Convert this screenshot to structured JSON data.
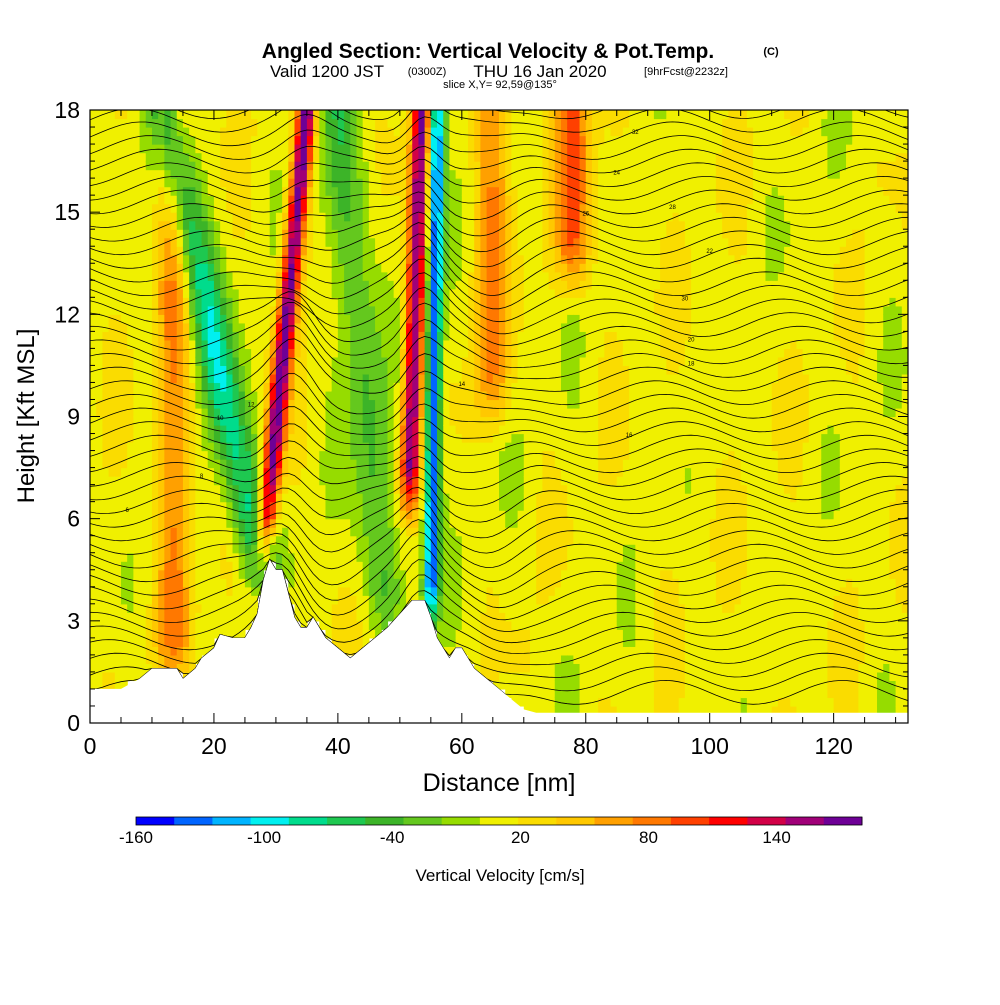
{
  "chart_data": {
    "type": "heatmap",
    "title": "Angled Section: Vertical Velocity & Pot.Temp.",
    "title_units": "(C)",
    "subtitle_main": "Valid 1200 JST",
    "subtitle_utc": "(0300Z)",
    "subtitle_date": "THU 16 Jan 2020",
    "subtitle_fcst": "[9hrFcst@2232z]",
    "slice_label": "slice X,Y= 92,59@135°",
    "xlabel": "Distance [nm]",
    "ylabel": "Height [Kft MSL]",
    "xlim": [
      0,
      132
    ],
    "ylim": [
      0,
      18
    ],
    "x_ticks": [
      0,
      20,
      40,
      60,
      80,
      100,
      120
    ],
    "y_ticks": [
      0,
      3,
      6,
      9,
      12,
      15,
      18
    ],
    "colorbar": {
      "label": "Vertical Velocity [cm/s]",
      "tick_labels": [
        "-160",
        "-100",
        "-40",
        "20",
        "80",
        "140"
      ],
      "tick_values": [
        -160,
        -100,
        -40,
        20,
        80,
        140
      ],
      "range": [
        -160,
        180
      ],
      "colors": [
        "#0000ff",
        "#0064ff",
        "#00b4ff",
        "#00f0f0",
        "#00dc8c",
        "#1ec850",
        "#3cb428",
        "#64c81e",
        "#96dc00",
        "#f0f000",
        "#fadc00",
        "#ffc800",
        "#ffa000",
        "#ff7800",
        "#ff4000",
        "#ff0000",
        "#d20046",
        "#a00078",
        "#6e0096"
      ]
    },
    "terrain": [
      [
        0,
        1
      ],
      [
        5,
        1
      ],
      [
        8,
        1.3
      ],
      [
        10,
        1.6
      ],
      [
        14,
        1.6
      ],
      [
        15,
        1.3
      ],
      [
        17,
        1.6
      ],
      [
        18,
        1.9
      ],
      [
        20,
        2.2
      ],
      [
        21,
        2.6
      ],
      [
        23,
        2.5
      ],
      [
        25,
        2.5
      ],
      [
        26,
        2.8
      ],
      [
        27,
        3.2
      ],
      [
        28,
        4.2
      ],
      [
        29,
        4.8
      ],
      [
        30,
        4.5
      ],
      [
        31,
        4.5
      ],
      [
        32,
        3.8
      ],
      [
        33,
        3.1
      ],
      [
        34,
        2.8
      ],
      [
        35,
        2.8
      ],
      [
        36,
        3.1
      ],
      [
        37,
        2.8
      ],
      [
        38,
        2.5
      ],
      [
        40,
        2.2
      ],
      [
        42,
        1.9
      ],
      [
        44,
        2.2
      ],
      [
        46,
        2.5
      ],
      [
        48,
        2.8
      ],
      [
        50,
        3.2
      ],
      [
        52,
        3.6
      ],
      [
        54,
        3.6
      ],
      [
        55,
        3.1
      ],
      [
        56,
        2.5
      ],
      [
        57,
        2.2
      ],
      [
        58,
        1.9
      ],
      [
        59,
        2.2
      ],
      [
        60,
        2.2
      ],
      [
        61,
        1.9
      ],
      [
        62,
        1.6
      ],
      [
        64,
        1.3
      ],
      [
        66,
        1.0
      ],
      [
        68,
        0.7
      ],
      [
        70,
        0.4
      ],
      [
        72,
        0.3
      ],
      [
        132,
        0.3
      ]
    ],
    "theta_labels": [
      "6",
      "8",
      "10",
      "12",
      "14",
      "16",
      "18",
      "20",
      "22",
      "24",
      "26",
      "28",
      "30",
      "32"
    ],
    "updrafts": [
      {
        "x_top": 35,
        "x_bottom": 28,
        "z_bottom": 5,
        "peak": 160
      },
      {
        "x_top": 53.5,
        "x_bottom": 51.5,
        "z_bottom": 6.5,
        "peak": 150
      },
      {
        "x_top": 78,
        "x_bottom": 78,
        "z_bottom": 13,
        "peak": 80
      },
      {
        "x_top": 65,
        "x_bottom": 65,
        "z_bottom": 9,
        "peak": 60
      },
      {
        "x_top": 13.5,
        "x_bottom": 13.5,
        "z_bottom": 1.5,
        "peak": 60
      }
    ],
    "downdrafts": [
      {
        "x_top": 56,
        "x_bottom": 55,
        "z_bottom": 3,
        "peak": -150
      },
      {
        "x_top": 12,
        "x_bottom": 28,
        "z_bottom": 4.5,
        "peak": -70
      },
      {
        "x_top": 40,
        "x_bottom": 48,
        "z_bottom": 3,
        "peak": -50
      }
    ]
  }
}
